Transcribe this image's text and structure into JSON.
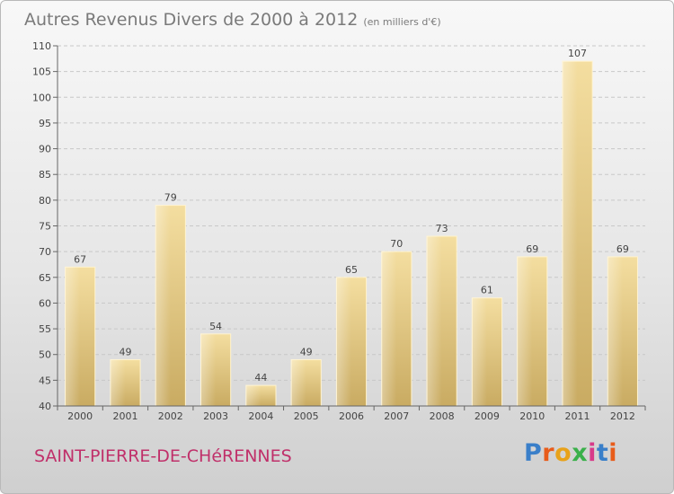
{
  "title": "Autres Revenus Divers de 2000 à 2012",
  "unit": "(en milliers d'€)",
  "town": "SAINT-PIERRE-DE-CHéRENNES",
  "logo": {
    "text": "Proxiti",
    "colors": [
      "#3a7fc9",
      "#e85c1a",
      "#e8a21a",
      "#3ab04a",
      "#d83a8a",
      "#3a7fc9",
      "#e85c1a"
    ]
  },
  "colors": {
    "bar_light": "#f4dea0",
    "bar_dark": "#c9ab62",
    "title": "#7a7a7a",
    "town": "#c0306a"
  },
  "chart_data": {
    "type": "bar",
    "categories": [
      "2000",
      "2001",
      "2002",
      "2003",
      "2004",
      "2005",
      "2006",
      "2007",
      "2008",
      "2009",
      "2010",
      "2011",
      "2012"
    ],
    "values": [
      67,
      49,
      79,
      54,
      44,
      49,
      65,
      70,
      73,
      61,
      69,
      107,
      69
    ],
    "ylim": [
      40,
      110
    ],
    "yticks": [
      40,
      45,
      50,
      55,
      60,
      65,
      70,
      75,
      80,
      85,
      90,
      95,
      100,
      105,
      110
    ],
    "grid": true
  }
}
